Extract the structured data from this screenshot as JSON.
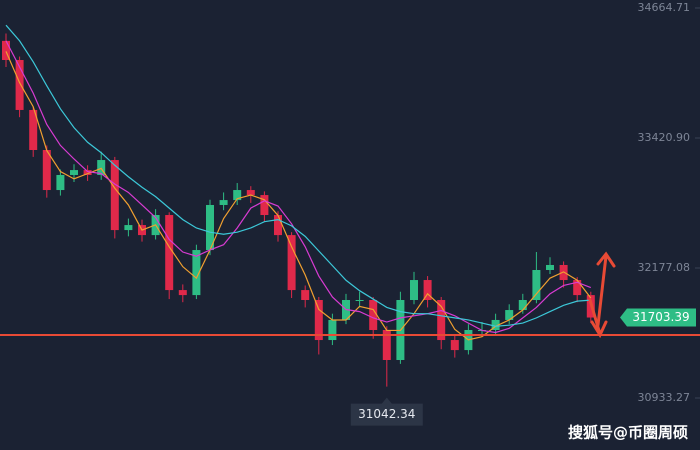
{
  "chart_data": {
    "type": "candlestick",
    "ylim": [
      30436,
      34741
    ],
    "yticks": [
      34664.71,
      {
        "value": 33420.9,
        "label": "33420.90"
      },
      32177.08,
      30933.27
    ],
    "up_color": "#2ebd85",
    "down_color": "#e0294a",
    "open": [
      34350,
      34167,
      33689,
      33306,
      32923,
      33067,
      33114,
      33067,
      33210,
      32540,
      32588,
      32492,
      32684,
      31966,
      31918,
      32349,
      32780,
      32827,
      32923,
      32875,
      32684,
      32492,
      31966,
      31871,
      31488,
      31680,
      31871,
      31871,
      31584,
      31297,
      31871,
      32062,
      31871,
      31488,
      31392,
      31584,
      31584,
      31680,
      31775,
      31871,
      32158,
      32206,
      32062,
      31918
    ],
    "high": [
      34420,
      34200,
      33720,
      33350,
      33120,
      33170,
      33160,
      33290,
      33240,
      32650,
      32640,
      32740,
      32710,
      32020,
      32400,
      32830,
      32900,
      32990,
      32960,
      32910,
      32720,
      32520,
      32010,
      31900,
      31740,
      31930,
      31950,
      31900,
      31620,
      31950,
      32140,
      32100,
      31900,
      31530,
      31640,
      31660,
      31740,
      31830,
      31930,
      32330,
      32280,
      32240,
      32090,
      31950
    ],
    "low": [
      34100,
      33620,
      33240,
      32850,
      32870,
      33000,
      33010,
      33020,
      32460,
      32480,
      32430,
      32450,
      31880,
      31850,
      31880,
      32300,
      32730,
      32780,
      32800,
      32620,
      32430,
      31890,
      31800,
      31350,
      31440,
      31640,
      31800,
      31500,
      31042.34,
      31260,
      31830,
      31800,
      31400,
      31320,
      31350,
      31520,
      31540,
      31640,
      31740,
      31840,
      32120,
      31990,
      31850,
      31650
    ],
    "close": [
      34167,
      33689,
      33306,
      32923,
      33067,
      33114,
      33067,
      33210,
      32540,
      32588,
      32492,
      32684,
      31966,
      31918,
      32349,
      32780,
      32827,
      32923,
      32875,
      32684,
      32492,
      31966,
      31871,
      31488,
      31680,
      31871,
      31871,
      31584,
      31297,
      31871,
      32062,
      31871,
      31488,
      31392,
      31584,
      31584,
      31680,
      31775,
      31871,
      32158,
      32206,
      32062,
      31918,
      31703.39
    ],
    "series": [
      {
        "color": "#f0a030",
        "values": [
          34250,
          33950,
          33720,
          33300,
          33100,
          33030,
          33080,
          33130,
          32940,
          32780,
          32540,
          32590,
          32380,
          32190,
          32080,
          32350,
          32650,
          32840,
          32875,
          32830,
          32680,
          32380,
          32110,
          31780,
          31680,
          31680,
          31810,
          31780,
          31580,
          31580,
          31740,
          31930,
          31810,
          31590,
          31490,
          31520,
          31620,
          31680,
          31775,
          31930,
          32080,
          32140,
          32060,
          31890
        ]
      },
      {
        "color": "#d83bd2",
        "values": [
          34350,
          34100,
          33850,
          33550,
          33350,
          33220,
          33100,
          33080,
          32980,
          32900,
          32780,
          32660,
          32450,
          32330,
          32290,
          32350,
          32400,
          32560,
          32750,
          32820,
          32770,
          32600,
          32380,
          32100,
          31900,
          31780,
          31760,
          31700,
          31660,
          31700,
          31720,
          31740,
          31770,
          31720,
          31650,
          31580,
          31560,
          31600,
          31700,
          31800,
          31930,
          32010,
          32040,
          31990
        ]
      },
      {
        "color": "#3cc8d8",
        "values": [
          34500,
          34350,
          34150,
          33920,
          33700,
          33520,
          33380,
          33280,
          33160,
          33050,
          32950,
          32860,
          32750,
          32640,
          32560,
          32520,
          32500,
          32520,
          32560,
          32620,
          32640,
          32580,
          32480,
          32340,
          32200,
          32060,
          31960,
          31880,
          31800,
          31760,
          31740,
          31740,
          31720,
          31700,
          31680,
          31650,
          31620,
          31630,
          31650,
          31700,
          31760,
          31820,
          31860,
          31870
        ]
      }
    ],
    "hline": 31536,
    "hline_color": "#e84a35",
    "watermark": "搜狐号@币圈周硕"
  }
}
